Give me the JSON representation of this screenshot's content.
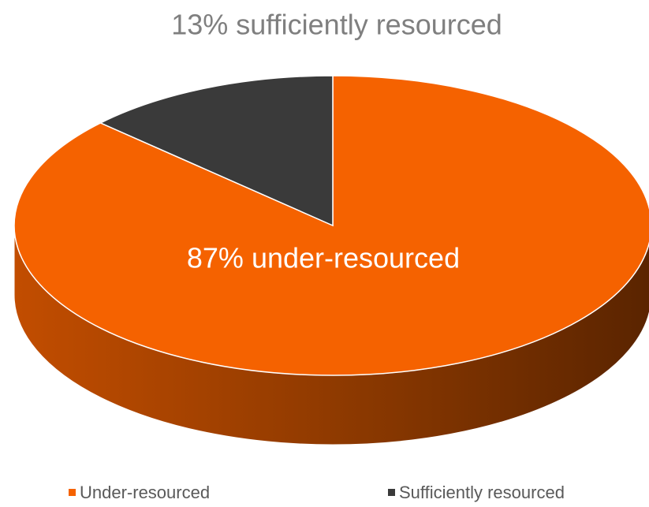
{
  "chart_data": {
    "type": "pie",
    "categories": [
      "Under-resourced",
      "Sufficiently resourced"
    ],
    "values": [
      87,
      13
    ],
    "value_labels": [
      "87% under-resourced",
      "13% sufficiently resourced"
    ],
    "colors": [
      "#f56200",
      "#3a3a3a"
    ],
    "legend": "bottom"
  }
}
